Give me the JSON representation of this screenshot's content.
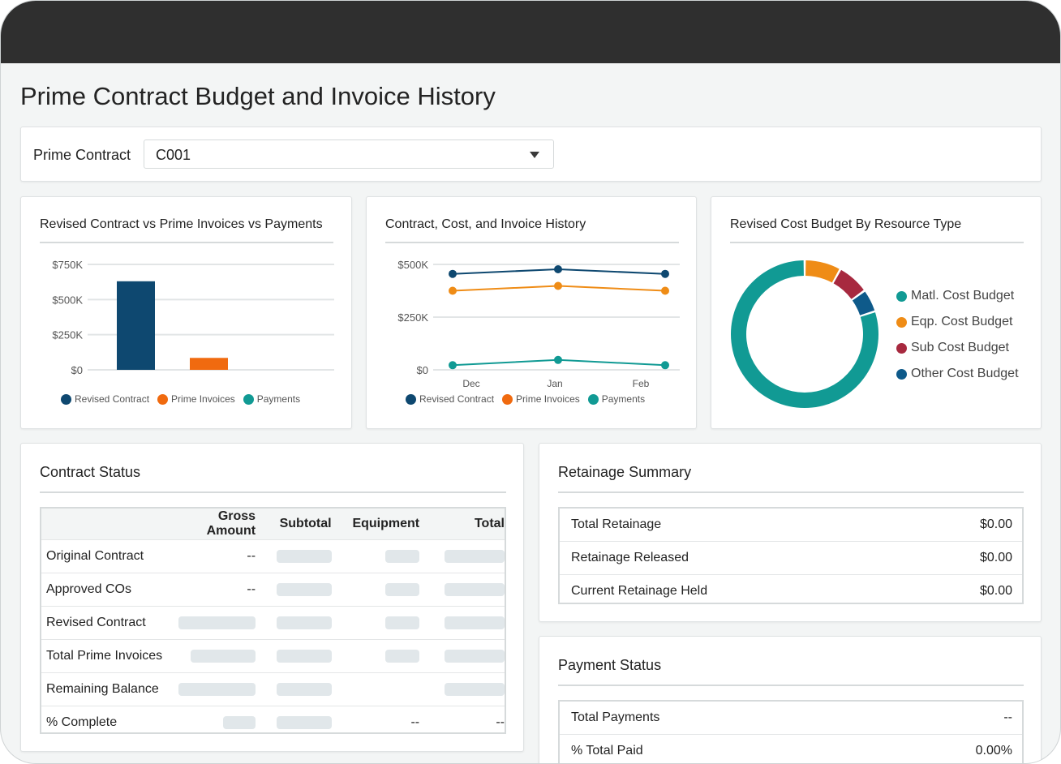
{
  "page": {
    "title": "Prime Contract Budget and Invoice History"
  },
  "filter": {
    "label": "Prime Contract",
    "value": "C001"
  },
  "charts": {
    "bar": {
      "title": "Revised Contract vs Prime Invoices vs Payments",
      "legend": [
        "Revised Contract",
        "Prime Invoices",
        "Payments"
      ]
    },
    "line": {
      "title": "Contract, Cost, and Invoice History",
      "legend": [
        "Revised Contract",
        "Prime Invoices",
        "Payments"
      ]
    },
    "donut": {
      "title": "Revised Cost Budget By Resource Type",
      "legend": [
        "Matl. Cost Budget",
        "Eqp. Cost Budget",
        "Sub Cost Budget",
        "Other Cost Budget"
      ]
    }
  },
  "chart_data": [
    {
      "type": "bar",
      "title": "Revised Contract vs Prime Invoices vs Payments",
      "categories": [
        "Revised Contract",
        "Prime Invoices",
        "Payments"
      ],
      "values": [
        630000,
        85000,
        0
      ],
      "ytick_labels": [
        "$750K",
        "$500K",
        "$250K",
        "$0"
      ],
      "ylim": [
        0,
        750000
      ],
      "colors": [
        "#0e4870",
        "#f06a0f",
        "#119a94"
      ],
      "legend": "bottom"
    },
    {
      "type": "line",
      "title": "Contract, Cost, and Invoice History",
      "categories": [
        "Dec",
        "Jan",
        "Feb"
      ],
      "ytick_labels": [
        "$500K",
        "$250K",
        "$0"
      ],
      "ylim": [
        0,
        500000
      ],
      "series": [
        {
          "name": "Revised Contract",
          "values": [
            455000,
            477000,
            455000
          ],
          "color": "#0e4870"
        },
        {
          "name": "Prime Invoices",
          "values": [
            375000,
            398000,
            375000
          ],
          "color": "#ef8c16"
        },
        {
          "name": "Payments",
          "values": [
            22000,
            47000,
            22000
          ],
          "color": "#119a94"
        }
      ],
      "legend": "bottom"
    },
    {
      "type": "pie",
      "title": "Revised Cost Budget By Resource Type",
      "labels": [
        "Matl. Cost Budget",
        "Eqp. Cost Budget",
        "Sub Cost Budget",
        "Other Cost Budget"
      ],
      "values": [
        80,
        8,
        7,
        5
      ],
      "colors": [
        "#119a94",
        "#ef8c16",
        "#a7293f",
        "#0e5a8a"
      ],
      "legend": "right"
    }
  ],
  "contract_status": {
    "title": "Contract Status",
    "columns": [
      "",
      "Gross Amount",
      "Subtotal",
      "Equipment",
      "Total"
    ],
    "rows": [
      {
        "label": "Original Contract",
        "gross": "--",
        "equipment": "",
        "total": ""
      },
      {
        "label": "Approved COs",
        "gross": "--",
        "equipment": "",
        "total": ""
      },
      {
        "label": "Revised Contract",
        "gross": "",
        "equipment": "",
        "total": ""
      },
      {
        "label": "Total Prime Invoices",
        "gross": "",
        "equipment": "",
        "total": ""
      },
      {
        "label": "Remaining Balance",
        "gross": "",
        "equipment": "",
        "total": ""
      },
      {
        "label": "% Complete",
        "gross": "",
        "equipment": "--",
        "total": "--"
      }
    ]
  },
  "retainage": {
    "title": "Retainage Summary",
    "rows": [
      {
        "label": "Total Retainage",
        "value": "$0.00"
      },
      {
        "label": "Retainage Released",
        "value": "$0.00"
      },
      {
        "label": "Current Retainage Held",
        "value": "$0.00"
      }
    ]
  },
  "payment_status": {
    "title": "Payment Status",
    "rows": [
      {
        "label": "Total Payments",
        "value": "--"
      },
      {
        "label": "% Total Paid",
        "value": "0.00%"
      }
    ]
  },
  "colors": {
    "navy": "#0e4870",
    "orange": "#f06a0f",
    "teal": "#119a94",
    "amber": "#ef8c16",
    "crimson": "#a7293f",
    "blue": "#0e5a8a",
    "skeleton": "#e1e7ea"
  }
}
